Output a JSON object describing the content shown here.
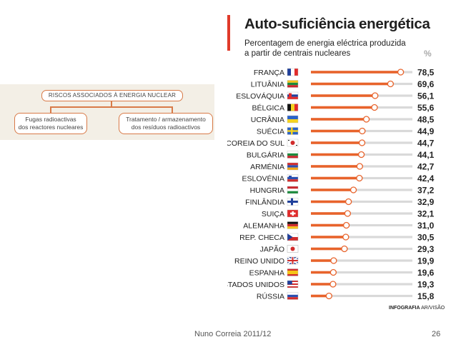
{
  "diagram": {
    "root": "RISCOS ASSOCIADOS À ENERGIA NUCLEAR",
    "left_line1": "Fugas radioactivas",
    "left_line2": "dos reactores nucleares",
    "right_line1": "Tratamento / armazenamento",
    "right_line2": "dos resíduos radioactivos"
  },
  "chart": {
    "title": "Auto-suficiência energética",
    "subtitle_line1": "Percentagem de energia eléctrica produzida",
    "subtitle_line2": "a partir de centrais nucleares",
    "unit": "%",
    "credit_bold": "INFOGRAFIA",
    "credit_rest": " AR/VISÃO"
  },
  "chart_data": {
    "type": "bar",
    "title": "Auto-suficiência energética",
    "xlabel": "",
    "ylabel": "%",
    "ylim": [
      0,
      100
    ],
    "categories": [
      "FRANÇA",
      "LITUÂNIA",
      "ESLOVÁQUIA",
      "BÉLGICA",
      "UCRÂNIA",
      "SUÉCIA",
      "COREIA DO SUL",
      "BULGÁRIA",
      "ARMÉNIA",
      "ESLOVÉNIA",
      "HUNGRIA",
      "FINLÂNDIA",
      "SUIÇA",
      "ALEMANHA",
      "REP. CHECA",
      "JAPÃO",
      "REINO UNIDO",
      "ESPANHA",
      "STADOS UNIDOS",
      "RÚSSIA"
    ],
    "values": [
      78.5,
      69.6,
      56.1,
      55.6,
      48.5,
      44.9,
      44.7,
      44.1,
      42.7,
      42.4,
      37.2,
      32.9,
      32.1,
      31.0,
      30.5,
      29.3,
      19.9,
      19.6,
      19.3,
      15.8
    ],
    "labels": [
      "78,5",
      "69,6",
      "56,1",
      "55,6",
      "48,5",
      "44,9",
      "44,7",
      "44,1",
      "42,7",
      "42,4",
      "37,2",
      "32,9",
      "32,1",
      "31,0",
      "30,5",
      "29,3",
      "19,9",
      "19,6",
      "19,3",
      "15,8"
    ],
    "flags": [
      "flag-france",
      "flag-lithuania",
      "flag-slovakia",
      "flag-belgium",
      "flag-ukraine",
      "flag-sweden",
      "flag-south-korea",
      "flag-bulgaria",
      "flag-armenia",
      "flag-slovenia",
      "flag-hungary",
      "flag-finland",
      "flag-switzerland",
      "flag-germany",
      "flag-czech",
      "flag-japan",
      "flag-uk",
      "flag-spain",
      "flag-usa",
      "flag-russia"
    ]
  },
  "colors": {
    "bar": "#e8632b",
    "track": "#d9d9d9",
    "accent": "#d87a48"
  },
  "footer": {
    "author": "Nuno Correia 2011/12",
    "page": "26"
  }
}
